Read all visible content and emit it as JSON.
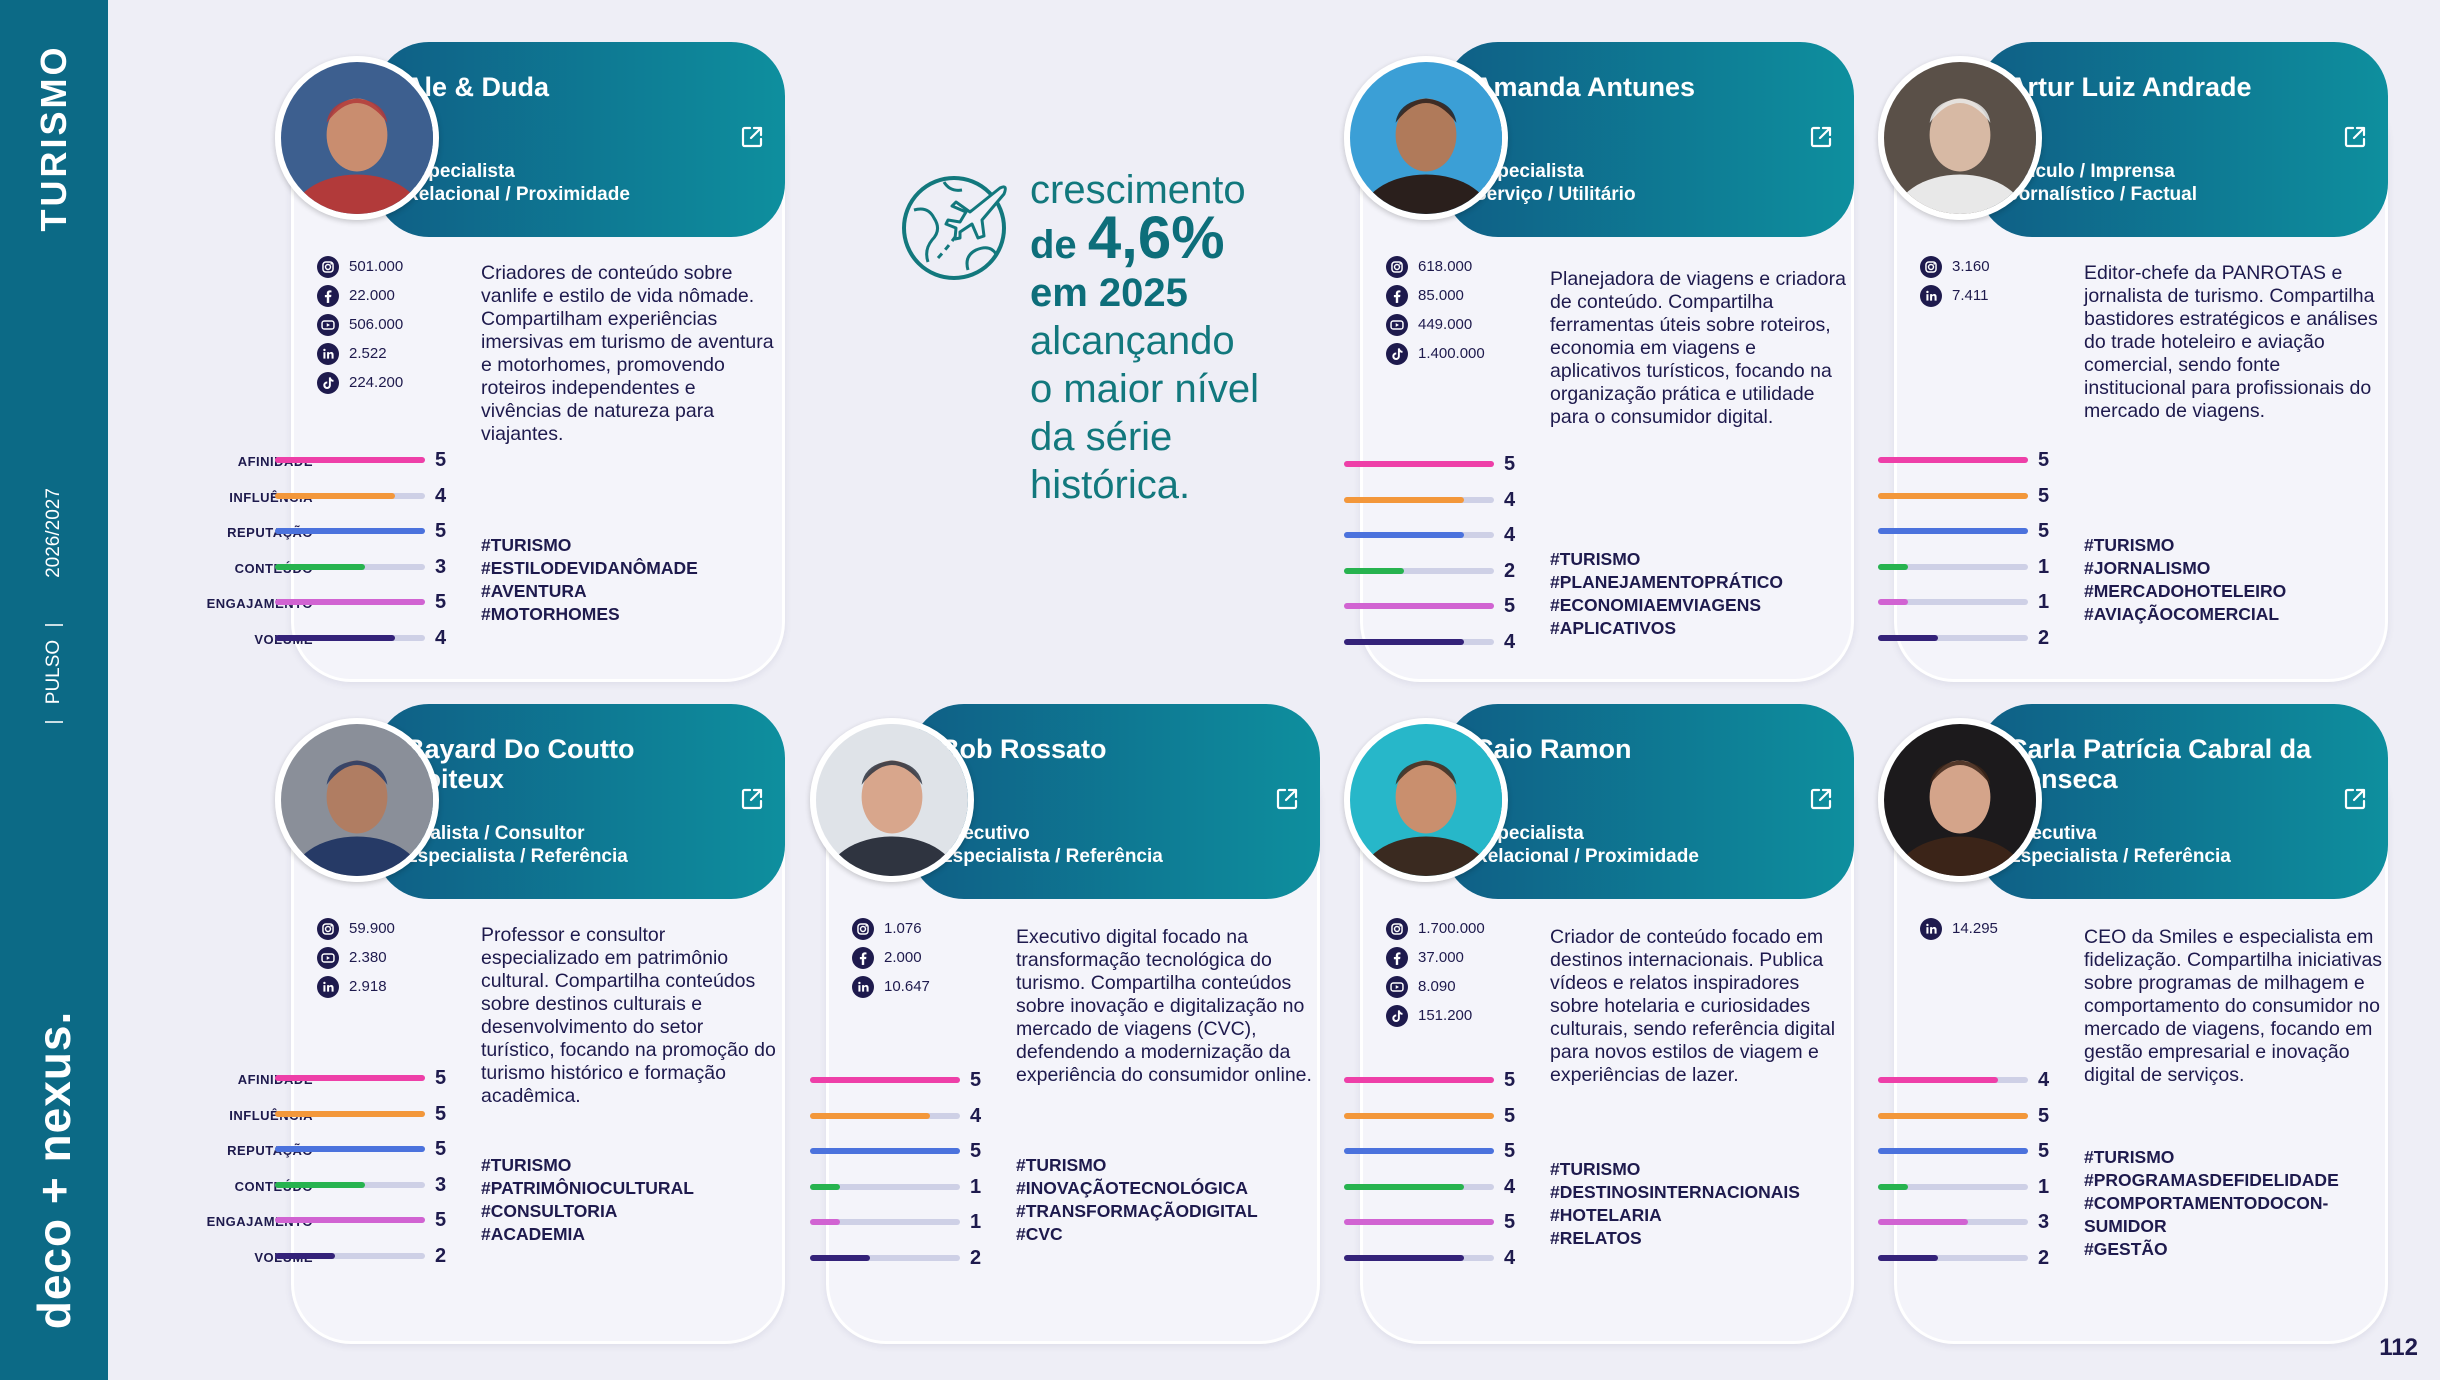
{
  "sidebar": {
    "section": "TURISMO",
    "period": "2026/2027",
    "separator": "|",
    "pulso": "PULSO",
    "brand": "deco + nexus."
  },
  "page_number": "112",
  "headline": {
    "line1": "crescimento",
    "line2_prefix": "de",
    "line2_value": "4,6%",
    "line3": "em 2025",
    "line4": "alcançando",
    "line5": "o maior nível",
    "line6": "da série",
    "line7": "histórica."
  },
  "metric_labels": [
    "AFINIDADE",
    "INFLUÊNCIA",
    "REPUTAÇÃO",
    "CONTEÚDO",
    "ENGAJAMENTO",
    "VOLUME"
  ],
  "metric_colors": [
    "#ee3fa8",
    "#f3973a",
    "#4b72dd",
    "#27b34f",
    "#d163d2",
    "#342279"
  ],
  "cards": [
    {
      "name": "Ale & Duda",
      "role": [
        "Especialista",
        "Relacional / Proximidade"
      ],
      "socials": [
        {
          "icon": "instagram",
          "count": "501.000"
        },
        {
          "icon": "facebook",
          "count": "22.000"
        },
        {
          "icon": "youtube",
          "count": "506.000"
        },
        {
          "icon": "linkedin",
          "count": "2.522"
        },
        {
          "icon": "tiktok",
          "count": "224.200"
        }
      ],
      "description": "Criadores de conteúdo sobre vanlife e estilo de vida nômade. Compartilham experiências imersivas em turismo de aventura e motorhomes, promovendo roteiros independentes e vivências de natureza para viajantes.",
      "hashtags": [
        "#TURISMO",
        "#ESTILODEVIDANÔMADE",
        "#AVENTURA",
        "#MOTORHOMES"
      ],
      "metrics": [
        5,
        4,
        5,
        3,
        5,
        4
      ],
      "photo_colors": [
        "#3d5f8f",
        "#c98d6f",
        "#b23a3a"
      ]
    },
    {
      "name": "Amanda Antunes",
      "role": [
        "Especialista",
        "Serviço / Utilitário"
      ],
      "socials": [
        {
          "icon": "instagram",
          "count": "618.000"
        },
        {
          "icon": "facebook",
          "count": "85.000"
        },
        {
          "icon": "youtube",
          "count": "449.000"
        },
        {
          "icon": "tiktok",
          "count": "1.400.000"
        }
      ],
      "description": "Planejadora de viagens e criadora de conteúdo. Compartilha ferramentas úteis sobre roteiros, economia em viagens e aplicativos turísticos, focando na organização prática e utilidade para o consumidor digital.",
      "hashtags": [
        "#TURISMO",
        "#PLANEJAMENTOPRÁTICO",
        "#ECONOMIAEMVIAGENS",
        "#APLICATIVOS"
      ],
      "metrics": [
        5,
        4,
        4,
        2,
        5,
        4
      ],
      "photo_colors": [
        "#3b9fd6",
        "#b07a5a",
        "#2a1f1c"
      ]
    },
    {
      "name": "Artur Luiz Andrade",
      "role": [
        "Veículo / Imprensa",
        "Jornalístico / Factual"
      ],
      "socials": [
        {
          "icon": "instagram",
          "count": "3.160"
        },
        {
          "icon": "linkedin",
          "count": "7.411"
        }
      ],
      "description": "Editor-chefe da PANROTAS e jornalista de turismo. Compartilha bastidores estratégicos e análises do trade hoteleiro e aviação comercial, sendo fonte institucional para profissionais do mercado de viagens.",
      "hashtags": [
        "#TURISMO",
        "#JORNALISMO",
        "#MERCADOHOTELEIRO",
        "#AVIAÇÃOCOMERCIAL"
      ],
      "metrics": [
        5,
        5,
        5,
        1,
        1,
        2
      ],
      "photo_colors": [
        "#5a5048",
        "#d7b9a4",
        "#e8e8e8"
      ]
    },
    {
      "name": "Bayard Do Coutto Boiteux",
      "role": [
        "Analista / Consultor",
        "Especialista / Referência"
      ],
      "socials": [
        {
          "icon": "instagram",
          "count": "59.900"
        },
        {
          "icon": "youtube",
          "count": "2.380"
        },
        {
          "icon": "linkedin",
          "count": "2.918"
        }
      ],
      "description": "Professor e consultor especializado em patrimônio cultural. Compartilha conteúdos sobre destinos culturais e desenvolvimento do setor turístico, focando na promoção do turismo histórico e formação acadêmica.",
      "hashtags": [
        "#TURISMO",
        "#PATRIMÔNIOCULTURAL",
        "#CONSULTORIA",
        "#ACADEMIA"
      ],
      "metrics": [
        5,
        5,
        5,
        3,
        5,
        2
      ],
      "photo_colors": [
        "#8a8f99",
        "#b07d62",
        "#263a66"
      ]
    },
    {
      "name": "Bob Rossato",
      "role": [
        "Executivo",
        "Especialista / Referência"
      ],
      "socials": [
        {
          "icon": "instagram",
          "count": "1.076"
        },
        {
          "icon": "facebook",
          "count": "2.000"
        },
        {
          "icon": "linkedin",
          "count": "10.647"
        }
      ],
      "description": "Executivo digital focado na transformação tecnológica do turismo. Compartilha conteúdos sobre inovação e digitalização no mercado de viagens (CVC), defendendo a modernização da experiência do consumidor online.",
      "hashtags": [
        "#TURISMO",
        "#INOVAÇÃOTECNOLÓGICA",
        "#TRANSFORMAÇÃODIGITAL",
        "#CVC"
      ],
      "metrics": [
        5,
        4,
        5,
        1,
        1,
        2
      ],
      "photo_colors": [
        "#dfe3e8",
        "#d8a68c",
        "#2f3440"
      ]
    },
    {
      "name": "Caio Ramon",
      "role": [
        "Especialista",
        "Relacional / Proximidade"
      ],
      "socials": [
        {
          "icon": "instagram",
          "count": "1.700.000"
        },
        {
          "icon": "facebook",
          "count": "37.000"
        },
        {
          "icon": "youtube",
          "count": "8.090"
        },
        {
          "icon": "tiktok",
          "count": "151.200"
        }
      ],
      "description": "Criador de conteúdo focado em destinos internacionais. Publica vídeos e relatos inspiradores sobre hotelaria e curiosidades culturais, sendo referência digital para novos estilos de viagem e experiências de lazer.",
      "hashtags": [
        "#TURISMO",
        "#DESTINOSINTERNACIONAIS",
        "#HOTELARIA",
        "#RELATOS"
      ],
      "metrics": [
        5,
        5,
        5,
        4,
        5,
        4
      ],
      "photo_colors": [
        "#27b7c9",
        "#c98f6e",
        "#3a2a20"
      ]
    },
    {
      "name": "Carla Patrícia Cabral da Fonseca",
      "role": [
        "Executiva",
        "Especialista / Referência"
      ],
      "socials": [
        {
          "icon": "linkedin",
          "count": "14.295"
        }
      ],
      "description": "CEO da Smiles e especialista em fidelização. Compartilha iniciativas sobre programas de milhagem e comportamento do consumidor no mercado de viagens, focando em gestão empresarial e inovação digital de serviços.",
      "hashtags": [
        "#TURISMO",
        "#PROGRAMASDEFIDELIDADE",
        "#COMPORTAMENTODOCON-",
        "SUMIDOR",
        "#GESTÃO"
      ],
      "metrics": [
        4,
        5,
        5,
        1,
        3,
        2
      ],
      "photo_colors": [
        "#1c1a1c",
        "#d4a48a",
        "#3b2418"
      ]
    }
  ]
}
